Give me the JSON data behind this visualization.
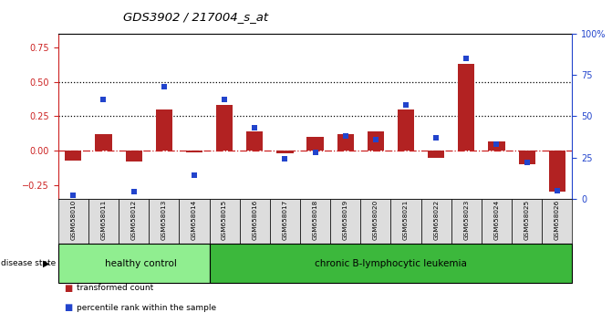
{
  "title": "GDS3902 / 217004_s_at",
  "samples": [
    "GSM658010",
    "GSM658011",
    "GSM658012",
    "GSM658013",
    "GSM658014",
    "GSM658015",
    "GSM658016",
    "GSM658017",
    "GSM658018",
    "GSM658019",
    "GSM658020",
    "GSM658021",
    "GSM658022",
    "GSM658023",
    "GSM658024",
    "GSM658025",
    "GSM658026"
  ],
  "bar_values": [
    -0.07,
    0.12,
    -0.08,
    0.3,
    -0.01,
    0.33,
    0.14,
    -0.02,
    0.1,
    0.12,
    0.14,
    0.3,
    -0.05,
    0.63,
    0.07,
    -0.1,
    -0.3
  ],
  "dot_values_pct": [
    2,
    60,
    4,
    68,
    14,
    60,
    43,
    24,
    28,
    38,
    36,
    57,
    37,
    85,
    33,
    22,
    5
  ],
  "bar_color": "#B22222",
  "dot_color": "#2244CC",
  "ylim_left": [
    -0.35,
    0.85
  ],
  "ylim_right": [
    0,
    100
  ],
  "yticks_left": [
    -0.25,
    0.0,
    0.25,
    0.5,
    0.75
  ],
  "yticks_right": [
    0,
    25,
    50,
    75,
    100
  ],
  "ytick_labels_right": [
    "0",
    "25",
    "50",
    "75",
    "100%"
  ],
  "hline_zero_color": "#CC2222",
  "hline_zero_style": "-.",
  "hline_dot_color": "#000000",
  "hline_dot_style": ":",
  "healthy_label": "healthy control",
  "leukemia_label": "chronic B-lymphocytic leukemia",
  "disease_state_label": "disease state",
  "healthy_count": 5,
  "legend_bar_label": "transformed count",
  "legend_dot_label": "percentile rank within the sample",
  "bg_color": "#FFFFFF",
  "plot_bg_color": "#FFFFFF",
  "label_area_color": "#DDDDDD",
  "healthy_box_color": "#90EE90",
  "leukemia_box_color": "#3CB83C",
  "title_color": "#000000",
  "left_axis_color": "#CC2222",
  "right_axis_color": "#2244CC"
}
